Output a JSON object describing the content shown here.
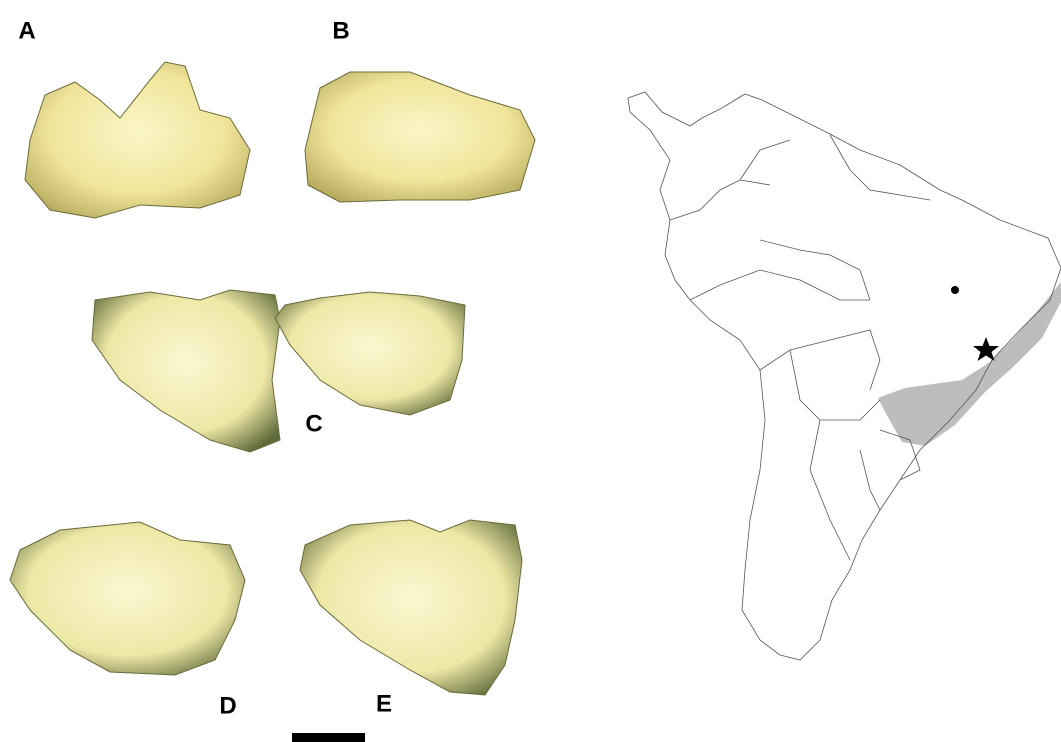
{
  "panels": [
    {
      "label": "A"
    },
    {
      "label": "B"
    },
    {
      "label": "C"
    },
    {
      "label": "D"
    },
    {
      "label": "E"
    }
  ]
}
